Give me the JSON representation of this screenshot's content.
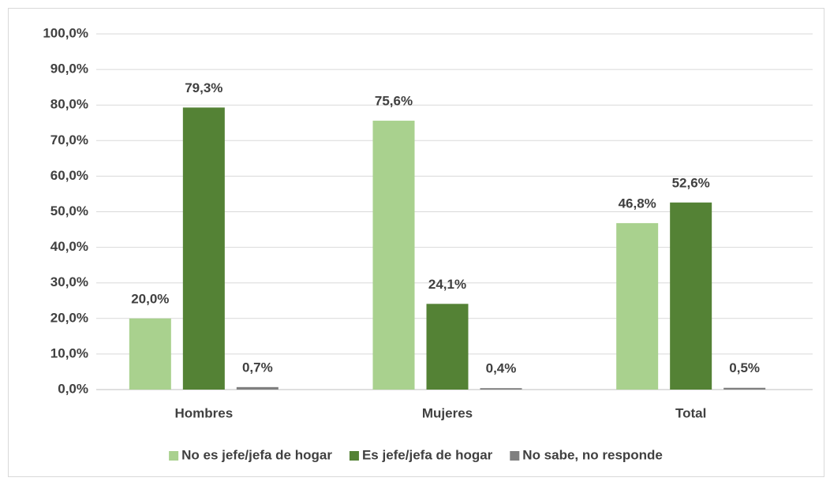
{
  "chart_data": {
    "type": "bar",
    "categories": [
      "Hombres",
      "Mujeres",
      "Total"
    ],
    "series": [
      {
        "name": "No es jefe/jefa de hogar",
        "color": "#a9d18e",
        "values": [
          20.0,
          75.6,
          46.8
        ],
        "value_labels": [
          "20,0%",
          "75,6%",
          "46,8%"
        ]
      },
      {
        "name": "Es jefe/jefa de hogar",
        "color": "#548235",
        "values": [
          79.3,
          24.1,
          52.6
        ],
        "value_labels": [
          "79,3%",
          "24,1%",
          "52,6%"
        ]
      },
      {
        "name": "No sabe, no responde",
        "color": "#7f7f7f",
        "values": [
          0.7,
          0.4,
          0.5
        ],
        "value_labels": [
          "0,7%",
          "0,4%",
          "0,5%"
        ]
      }
    ],
    "ylim": [
      0,
      100
    ],
    "yticks": [
      {
        "value": 0,
        "label": "0,0%"
      },
      {
        "value": 10,
        "label": "10,0%"
      },
      {
        "value": 20,
        "label": "20,0%"
      },
      {
        "value": 30,
        "label": "30,0%"
      },
      {
        "value": 40,
        "label": "40,0%"
      },
      {
        "value": 50,
        "label": "50,0%"
      },
      {
        "value": 60,
        "label": "60,0%"
      },
      {
        "value": 70,
        "label": "70,0%"
      },
      {
        "value": 80,
        "label": "80,0%"
      },
      {
        "value": 90,
        "label": "90,0%"
      },
      {
        "value": 100,
        "label": "100,0%"
      }
    ],
    "grid": true,
    "legend": "bottom"
  }
}
